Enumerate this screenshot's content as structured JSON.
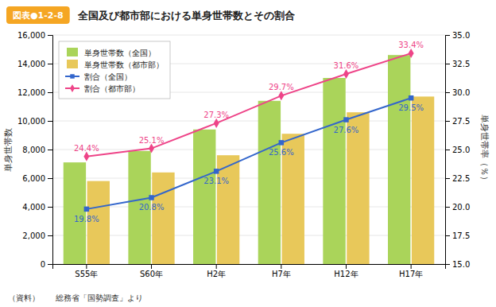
{
  "chart_data": {
    "type": "bar",
    "title": "全国及び都市部における単身世帯数とその割合",
    "annotations": [
      "図表●1-2-8",
      "（資料）　　総務省「国勢調査」より"
    ],
    "categories": [
      "S55年",
      "S60年",
      "H2年",
      "H7年",
      "H12年",
      "H17年"
    ],
    "series": [
      {
        "name": "単身世帯数（全国）",
        "type": "bar",
        "color": "#aad45a",
        "values": [
          7100,
          7900,
          9400,
          11400,
          13000,
          14600
        ]
      },
      {
        "name": "単身世帯数（都市部）",
        "type": "bar",
        "color": "#e8c85a",
        "values": [
          5800,
          6400,
          7600,
          9100,
          10600,
          11700
        ]
      },
      {
        "name": "割合（全国）",
        "type": "line",
        "axis": "y2",
        "color": "#3366cc",
        "marker": "square",
        "data_labels": true,
        "values": [
          19.8,
          20.8,
          23.1,
          25.6,
          27.6,
          29.5
        ],
        "value_labels": [
          "19.8%",
          "20.8%",
          "23.1%",
          "25.6%",
          "27.6%",
          "29.5%"
        ]
      },
      {
        "name": "割合（都市部）",
        "type": "line",
        "axis": "y2",
        "color": "#ee4488",
        "marker": "diamond",
        "data_labels": true,
        "values": [
          24.4,
          25.1,
          27.3,
          29.7,
          31.6,
          33.4
        ],
        "value_labels": [
          "24.4%",
          "25.1%",
          "27.3%",
          "29.7%",
          "31.6%",
          "33.4%"
        ]
      }
    ],
    "ylabel": "単身世帯数",
    "y2label": "単身世帯率（％）",
    "ylim": [
      0,
      16000
    ],
    "yticks": [
      0,
      {
        "value": 2000,
        "label": "2,000"
      },
      {
        "value": 4000,
        "label": "4,000"
      },
      {
        "value": 6000,
        "label": "6,000"
      },
      {
        "value": 8000,
        "label": "8,000"
      },
      {
        "value": 10000,
        "label": "10,000"
      },
      {
        "value": 12000,
        "label": "12,000"
      },
      {
        "value": 14000,
        "label": "14,000"
      },
      {
        "value": 16000,
        "label": "16,000"
      }
    ],
    "y2lim": [
      15.0,
      35.0
    ],
    "y2ticks": [
      {
        "value": 15.0,
        "label": "15.0"
      },
      17.5,
      {
        "value": 20.0,
        "label": "20.0"
      },
      22.5,
      {
        "value": 25.0,
        "label": "25.0"
      },
      27.5,
      {
        "value": 30.0,
        "label": "30.0"
      },
      32.5,
      {
        "value": 35.0,
        "label": "35.0"
      }
    ],
    "grid": true,
    "legend": "upper left"
  }
}
